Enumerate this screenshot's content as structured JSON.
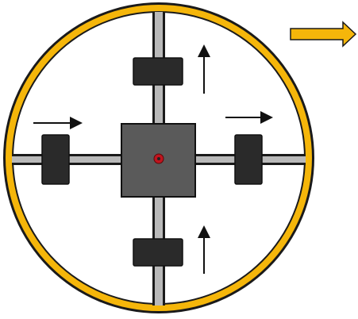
{
  "diagram": {
    "type": "mechanism-schematic",
    "colors": {
      "background": "#ffffff",
      "ring": "#f5b60a",
      "ring_outline": "#1a1a1a",
      "rail": "#b9b9b9",
      "rail_outline": "#1a1a1a",
      "slider_block": "#2a2a2a",
      "hub": "#5a5a5a",
      "pivot": "#c0141e",
      "motion_arrow": "#111111",
      "direction_arrow": "#f5b60a"
    },
    "icons": {
      "external_direction": "right-arrow-icon",
      "pivot": "pivot-icon",
      "motion": "motion-arrow-icon"
    },
    "motion_indicators": [
      {
        "slider": "top",
        "direction": "up"
      },
      {
        "slider": "right",
        "direction": "right"
      },
      {
        "slider": "bottom",
        "direction": "up"
      },
      {
        "slider": "left",
        "direction": "right"
      }
    ]
  }
}
